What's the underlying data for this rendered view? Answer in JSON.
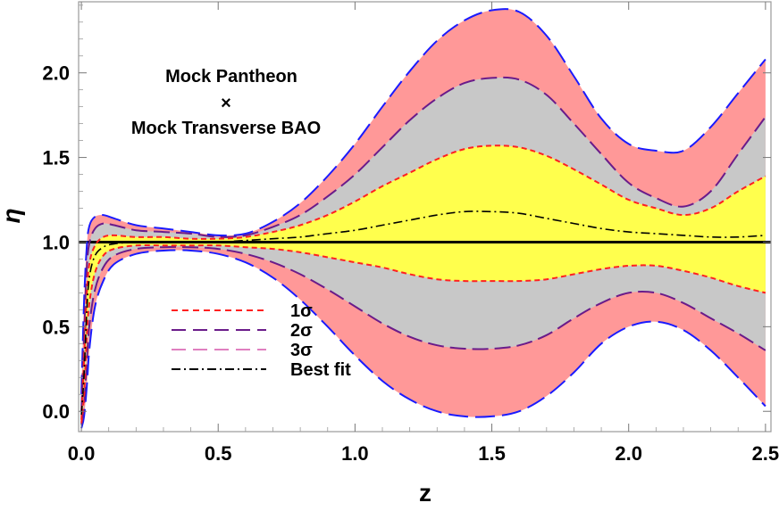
{
  "chart_data": {
    "type": "area",
    "xlabel": "z",
    "ylabel": "η",
    "xlim": [
      -0.01,
      2.52
    ],
    "ylim": [
      -0.12,
      2.42
    ],
    "x_ticks": [
      0.0,
      0.5,
      1.0,
      1.5,
      2.0,
      2.5
    ],
    "x_tick_labels": [
      "0.0",
      "0.5",
      "1.0",
      "1.5",
      "2.0",
      "2.5"
    ],
    "y_ticks": [
      0.0,
      0.5,
      1.0,
      1.5,
      2.0
    ],
    "y_tick_labels": [
      "0.0",
      "0.5",
      "1.0",
      "1.5",
      "2.0"
    ],
    "reference_line": 1.0,
    "annotation": {
      "line1": "Mock Pantheon",
      "line2": "×",
      "line3": "Mock Transverse BAO"
    },
    "legend": [
      {
        "label": "1σ",
        "color": "#ff2020",
        "dash": "short"
      },
      {
        "label": "2σ",
        "color": "#6a1b8a",
        "dash": "long"
      },
      {
        "label": "3σ",
        "color": "#e07fc0",
        "dash": "long"
      },
      {
        "label": "Best fit",
        "color": "#000000",
        "dash": "dashdot"
      }
    ],
    "x": [
      0.0,
      0.01,
      0.02,
      0.03,
      0.05,
      0.08,
      0.12,
      0.2,
      0.3,
      0.4,
      0.5,
      0.6,
      0.7,
      0.8,
      0.9,
      1.0,
      1.1,
      1.2,
      1.3,
      1.4,
      1.5,
      1.6,
      1.7,
      1.8,
      1.9,
      2.0,
      2.1,
      2.2,
      2.3,
      2.4,
      2.5
    ],
    "series": [
      {
        "role": "upper_3sigma",
        "color": "#ff9898",
        "edge": "#1a1aff",
        "values": [
          0.1,
          0.65,
          0.98,
          1.1,
          1.15,
          1.16,
          1.14,
          1.1,
          1.08,
          1.06,
          1.04,
          1.05,
          1.12,
          1.23,
          1.39,
          1.58,
          1.8,
          2.01,
          2.19,
          2.31,
          2.37,
          2.36,
          2.22,
          1.98,
          1.73,
          1.58,
          1.54,
          1.54,
          1.68,
          1.88,
          2.08
        ]
      },
      {
        "role": "upper_2sigma",
        "color": "#c8c8c8",
        "edge": "#6a1b8a",
        "values": [
          0.0,
          0.45,
          0.85,
          1.0,
          1.08,
          1.11,
          1.1,
          1.07,
          1.06,
          1.05,
          1.03,
          1.04,
          1.09,
          1.16,
          1.27,
          1.4,
          1.56,
          1.72,
          1.85,
          1.94,
          1.97,
          1.96,
          1.87,
          1.7,
          1.52,
          1.35,
          1.26,
          1.21,
          1.3,
          1.52,
          1.74
        ]
      },
      {
        "role": "upper_1sigma",
        "color": "#ffff4d",
        "edge": "#ff2020",
        "values": [
          -0.05,
          0.3,
          0.7,
          0.88,
          0.98,
          1.03,
          1.04,
          1.03,
          1.03,
          1.02,
          1.02,
          1.03,
          1.06,
          1.1,
          1.16,
          1.24,
          1.33,
          1.41,
          1.49,
          1.55,
          1.57,
          1.56,
          1.51,
          1.43,
          1.34,
          1.25,
          1.2,
          1.16,
          1.2,
          1.3,
          1.39
        ]
      },
      {
        "role": "best_fit",
        "color": "#000000",
        "values": [
          -0.02,
          0.22,
          0.6,
          0.8,
          0.92,
          0.97,
          0.99,
          1.0,
          1.0,
          1.0,
          1.0,
          1.01,
          1.02,
          1.03,
          1.05,
          1.07,
          1.1,
          1.13,
          1.16,
          1.18,
          1.18,
          1.17,
          1.14,
          1.11,
          1.08,
          1.06,
          1.05,
          1.04,
          1.03,
          1.03,
          1.04
        ]
      },
      {
        "role": "lower_1sigma",
        "color": "#ffff4d",
        "edge": "#ff2020",
        "values": [
          -0.07,
          0.1,
          0.45,
          0.65,
          0.82,
          0.92,
          0.96,
          0.98,
          0.98,
          0.98,
          0.98,
          0.97,
          0.96,
          0.94,
          0.91,
          0.88,
          0.85,
          0.81,
          0.78,
          0.77,
          0.77,
          0.77,
          0.78,
          0.81,
          0.84,
          0.86,
          0.86,
          0.83,
          0.79,
          0.74,
          0.7
        ]
      },
      {
        "role": "lower_2sigma",
        "color": "#c8c8c8",
        "edge": "#6a1b8a",
        "values": [
          -0.08,
          0.04,
          0.3,
          0.52,
          0.72,
          0.85,
          0.92,
          0.96,
          0.97,
          0.97,
          0.96,
          0.93,
          0.88,
          0.81,
          0.72,
          0.62,
          0.52,
          0.44,
          0.39,
          0.37,
          0.37,
          0.39,
          0.45,
          0.55,
          0.64,
          0.7,
          0.7,
          0.64,
          0.55,
          0.46,
          0.36
        ]
      },
      {
        "role": "lower_3sigma",
        "color": "#ff9898",
        "edge": "#1a1aff",
        "values": [
          -0.1,
          -0.03,
          0.15,
          0.38,
          0.62,
          0.77,
          0.87,
          0.93,
          0.95,
          0.95,
          0.93,
          0.88,
          0.79,
          0.66,
          0.5,
          0.33,
          0.18,
          0.07,
          0.0,
          -0.03,
          -0.03,
          0.0,
          0.09,
          0.23,
          0.4,
          0.5,
          0.53,
          0.48,
          0.36,
          0.2,
          0.03
        ]
      }
    ],
    "grid": false
  }
}
